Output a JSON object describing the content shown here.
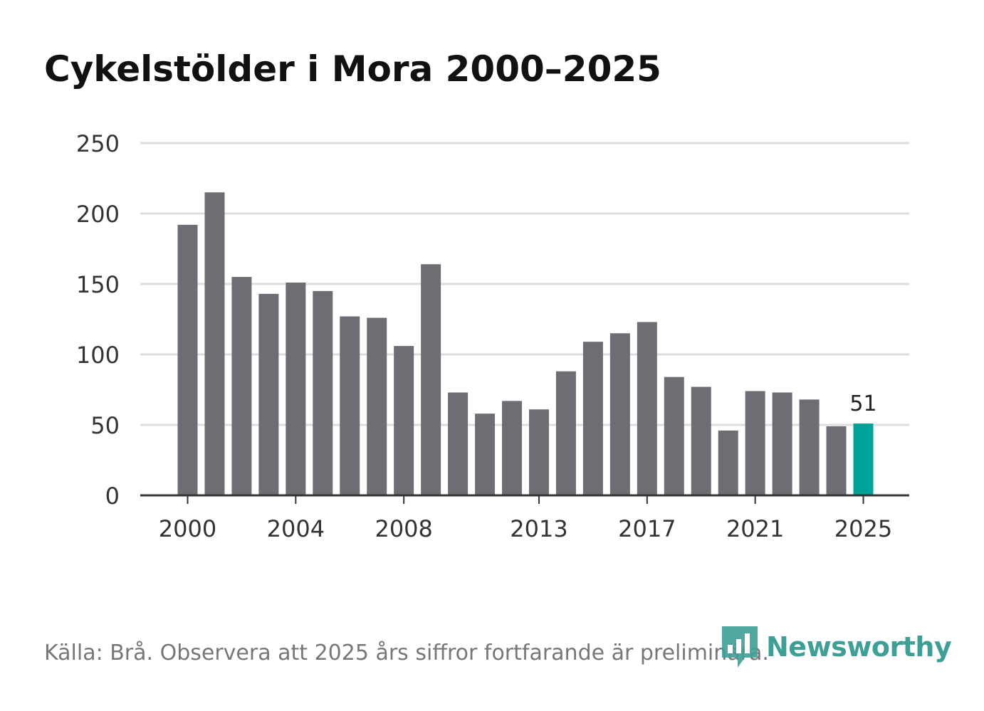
{
  "header": {
    "title": "Cykelstölder i Mora 2000–2025"
  },
  "footer": {
    "source_text": "Källa: Brå. Observera att 2025 års siffror fortfarande är preliminära."
  },
  "branding": {
    "logo_text": "Newsworthy",
    "logo_icon": "bar-chart-icon",
    "logo_color": "#3d9f96"
  },
  "colors": {
    "bar": "#6e6d73",
    "highlight": "#00a39a",
    "grid": "#dddddd",
    "axis": "#333333"
  },
  "chart_data": {
    "type": "bar",
    "title": "Cykelstölder i Mora 2000–2025",
    "xlabel": "",
    "ylabel": "",
    "ylim": [
      0,
      250
    ],
    "yticks": [
      0,
      50,
      100,
      150,
      200,
      250
    ],
    "xticks": [
      "2000",
      "2004",
      "2008",
      "2013",
      "2017",
      "2021",
      "2025"
    ],
    "categories": [
      "2000",
      "2001",
      "2002",
      "2003",
      "2004",
      "2005",
      "2006",
      "2007",
      "2008",
      "2009",
      "2010",
      "2011",
      "2012",
      "2013",
      "2014",
      "2015",
      "2016",
      "2017",
      "2018",
      "2019",
      "2020",
      "2021",
      "2022",
      "2023",
      "2024",
      "2025"
    ],
    "values": [
      192,
      215,
      155,
      143,
      151,
      145,
      127,
      126,
      106,
      164,
      73,
      58,
      67,
      61,
      88,
      109,
      115,
      123,
      84,
      77,
      46,
      74,
      73,
      68,
      49,
      51
    ],
    "highlight": {
      "category": "2025",
      "label": "51"
    },
    "grid": true
  }
}
